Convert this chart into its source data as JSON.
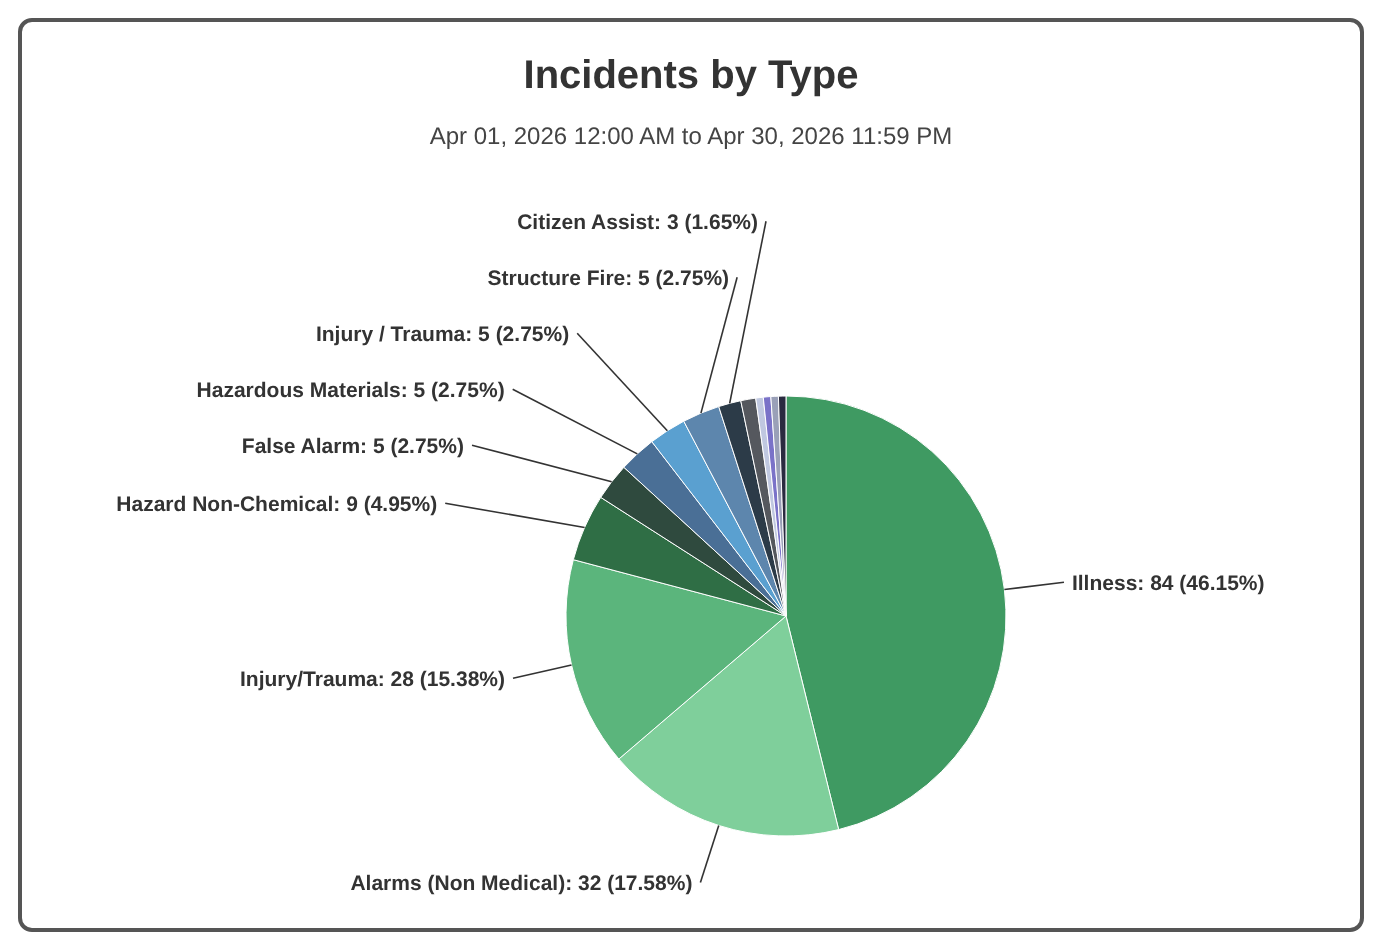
{
  "chart_data": {
    "type": "pie",
    "title": "Incidents by Type",
    "subtitle": "Apr 01, 2026 12:00 AM to Apr 30, 2026 11:59 PM",
    "categories": [
      "Illness",
      "Alarms (Non Medical)",
      "Injury/Trauma",
      "Hazard Non-Chemical",
      "False Alarm",
      "Hazardous Materials",
      "Injury / Trauma",
      "Structure Fire",
      "Citizen Assist",
      null,
      null,
      null,
      null,
      null
    ],
    "values": [
      84,
      32,
      28,
      9,
      5,
      5,
      5,
      5,
      3,
      2,
      1,
      1,
      1,
      1
    ],
    "value_labels": [
      "84 (46.15%)",
      "32 (17.58%)",
      "28 (15.38%)",
      "9 (4.95%)",
      "5 (2.75%)",
      "5 (2.75%)",
      "5 (2.75%)",
      "5 (2.75%)",
      "3 (1.65%)",
      null,
      null,
      null,
      null,
      null
    ],
    "colors": [
      "#3f9a62",
      "#7fcf9b",
      "#5bb57c",
      "#2f6e45",
      "#2f4a3e",
      "#4a6f96",
      "#5aa0d0",
      "#5d86ad",
      "#2c3b48",
      "#55585e",
      "#c0c8e0",
      "#7a72c8",
      "#9aa0b8",
      "#2a2a40"
    ]
  }
}
